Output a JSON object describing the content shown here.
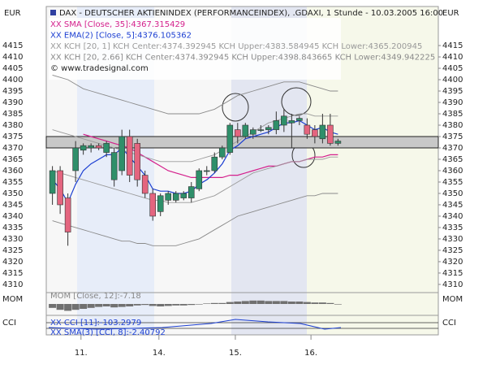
{
  "chart_data": {
    "type": "candlestick",
    "title": "DAX - DEUTSCHER AKTIENINDEX (PERFORMANCEINDEX), .GDAXI, 1 Stunde - 10.03.2005 16:00",
    "currency": "EUR",
    "copyright": "© www.tradesignal.com",
    "up_color": "#2f8f6a",
    "down_color": "#e4657f",
    "x": [
      0,
      1,
      2,
      3,
      4,
      5,
      6,
      7,
      8,
      9,
      10,
      11,
      12,
      13,
      14,
      15,
      16,
      17,
      18,
      19,
      20,
      21,
      22,
      23,
      24,
      25,
      26,
      27,
      28,
      29,
      30,
      31,
      32,
      33,
      34,
      35,
      36,
      37
    ],
    "open": [
      4350,
      4360,
      4348,
      4360,
      4369,
      4370,
      4371,
      4368,
      4356,
      4360,
      4375,
      4372,
      4358,
      4350,
      4342,
      4347,
      4347,
      4348,
      4348,
      4352,
      4360,
      4360,
      4366,
      4368,
      4378,
      4375,
      4376,
      4378,
      4378,
      4378,
      4380,
      4381,
      4382,
      4380,
      4378,
      4374,
      4380,
      4372
    ],
    "high": [
      4362,
      4362,
      4350,
      4373,
      4372,
      4372,
      4372,
      4373,
      4370,
      4378,
      4378,
      4374,
      4360,
      4352,
      4350,
      4351,
      4351,
      4351,
      4355,
      4361,
      4362,
      4368,
      4371,
      4381,
      4381,
      4381,
      4379,
      4380,
      4380,
      4386,
      4387,
      4385,
      4384,
      4383,
      4380,
      4385,
      4385,
      4374
    ],
    "low": [
      4345,
      4341,
      4327,
      4355,
      4367,
      4368,
      4369,
      4366,
      4353,
      4358,
      4355,
      4353,
      4348,
      4338,
      4340,
      4345,
      4346,
      4347,
      4346,
      4351,
      4358,
      4359,
      4365,
      4367,
      4372,
      4374,
      4374,
      4377,
      4376,
      4376,
      4377,
      4370,
      4380,
      4374,
      4372,
      4372,
      4371,
      4371
    ],
    "close": [
      4360,
      4345,
      4333,
      4370,
      4371,
      4371,
      4370,
      4372,
      4368,
      4375,
      4358,
      4356,
      4350,
      4340,
      4349,
      4350,
      4350,
      4350,
      4353,
      4360,
      4360,
      4366,
      4370,
      4380,
      4375,
      4380,
      4378,
      4378,
      4379,
      4382,
      4384,
      4382,
      4383,
      4376,
      4375,
      4380,
      4372,
      4373
    ],
    "series": [
      {
        "name": "XX SMA [Close, 35]:4367.315429",
        "color": "#d4208c",
        "values": [
          null,
          null,
          null,
          null,
          4376,
          4375,
          4374,
          4373,
          4372,
          4371,
          4370,
          4368,
          4366,
          4364,
          4362,
          4360,
          4359,
          4358,
          4357,
          4357,
          4357,
          4357,
          4357,
          4358,
          4358,
          4359,
          4360,
          4361,
          4362,
          4362,
          4363,
          4364,
          4364,
          4365,
          4366,
          4366,
          4367,
          4367
        ]
      },
      {
        "name": "XX EMA(2) [Close, 5]:4376.105362",
        "color": "#1c3fd2",
        "values": [
          4356,
          4352,
          4346,
          4354,
          4360,
          4363,
          4365,
          4367,
          4367,
          4370,
          4366,
          4362,
          4358,
          4352,
          4351,
          4351,
          4350,
          4350,
          4351,
          4354,
          4356,
          4359,
          4363,
          4369,
          4371,
          4374,
          4375,
          4376,
          4377,
          4379,
          4381,
          4381,
          4382,
          4380,
          4378,
          4379,
          4377,
          4376
        ]
      },
      {
        "name": "XX KCH [20, 1] KCH Center:4374.392945 KCH Upper:4383.584945 KCH Lower:4365.200945",
        "color": "#9a9a9a",
        "upper": [
          4378,
          4377,
          4376,
          4375,
          4374,
          4373,
          4372,
          4371,
          4370,
          4369,
          4368,
          4367,
          4366,
          4365,
          4364,
          4364,
          4364,
          4364,
          4364,
          4365,
          4366,
          4367,
          4369,
          4371,
          4373,
          4375,
          4377,
          4379,
          4381,
          4382,
          4383,
          4384,
          4385,
          4385,
          4384,
          4384,
          4384,
          4384
        ],
        "lower": [
          4360,
          4359,
          4358,
          4357,
          4356,
          4355,
          4354,
          4353,
          4352,
          4351,
          4350,
          4349,
          4348,
          4347,
          4347,
          4346,
          4346,
          4346,
          4346,
          4347,
          4348,
          4349,
          4351,
          4353,
          4355,
          4357,
          4359,
          4360,
          4361,
          4362,
          4363,
          4364,
          4364,
          4365,
          4365,
          4365,
          4366,
          4366
        ]
      },
      {
        "name": "XX KCH [20, 2.66] KCH Center:4374.392945 KCH Upper:4398.843665 KCH Lower:4349.942225",
        "color": "#8a8a8a",
        "upper": [
          4402,
          4401,
          4400,
          4398,
          4396,
          4395,
          4394,
          4393,
          4392,
          4391,
          4390,
          4389,
          4388,
          4387,
          4386,
          4385,
          4385,
          4385,
          4385,
          4385,
          4386,
          4387,
          4389,
          4391,
          4393,
          4394,
          4395,
          4396,
          4397,
          4398,
          4399,
          4399,
          4399,
          4398,
          4397,
          4396,
          4395,
          4395
        ],
        "lower": [
          4338,
          4337,
          4336,
          4335,
          4334,
          4333,
          4332,
          4331,
          4330,
          4329,
          4329,
          4328,
          4328,
          4327,
          4327,
          4327,
          4327,
          4328,
          4329,
          4330,
          4332,
          4334,
          4336,
          4338,
          4340,
          4341,
          4342,
          4343,
          4344,
          4345,
          4346,
          4347,
          4348,
          4349,
          4349,
          4350,
          4350,
          4350
        ]
      }
    ],
    "band": [
      4370,
      4375
    ],
    "xlim": [
      -0.8,
      50
    ],
    "xticks": [
      {
        "value": 3.7,
        "label": "11."
      },
      {
        "value": 13.8,
        "label": "14."
      },
      {
        "value": 23.7,
        "label": "15."
      },
      {
        "value": 33.5,
        "label": "16."
      }
    ],
    "ylim": [
      4306.4,
      4424.3
    ],
    "yticks": [
      4310,
      4315,
      4320,
      4325,
      4330,
      4335,
      4340,
      4345,
      4350,
      4355,
      4360,
      4365,
      4370,
      4375,
      4380,
      4385,
      4390,
      4395,
      4400,
      4405,
      4410,
      4415
    ],
    "mom": {
      "name": "MOM",
      "legend": "MOM [Close, 12]:-7.18",
      "color": "#707070",
      "ylim": [
        -20,
        20
      ],
      "values": [
        -8,
        -12,
        -14,
        -12,
        -10,
        -8,
        -6,
        -5,
        -7,
        -6,
        -5,
        -3,
        -2,
        -4,
        -5,
        -4,
        -3,
        -3,
        -2,
        -1,
        1,
        2,
        2,
        4,
        5,
        6,
        7,
        7,
        6,
        6,
        6,
        5,
        5,
        4,
        3,
        3,
        2,
        -1
      ]
    },
    "cci": {
      "name": "CCI",
      "legends": [
        "XX CCI [11]:-103.2979",
        "XX SMA(3) [CCI, 8]:-2.40792"
      ]
    }
  }
}
